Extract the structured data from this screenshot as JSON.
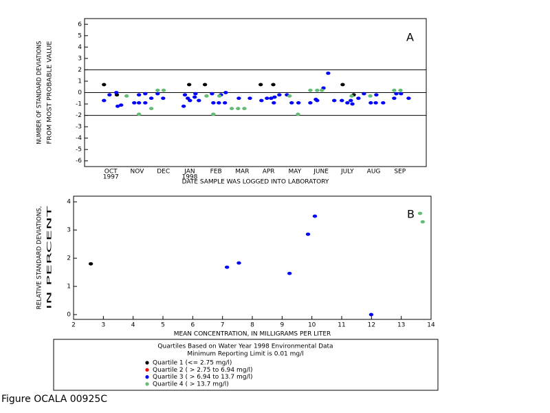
{
  "chart_data": [
    {
      "type": "scatter",
      "annotation": "A",
      "ylabel": [
        "NUMBER OF STANDARD DEVIATIONS",
        "FROM MOST PROBABLE VALUE"
      ],
      "xlabel": "DATE SAMPLE WAS LOGGED INTO LABORATORY",
      "xlim": [
        -0.5,
        12.5
      ],
      "ylim": [
        -6.5,
        6.5
      ],
      "xticks": [
        {
          "value": 0.5,
          "label": "OCT"
        },
        {
          "value": 1.5,
          "label": "NOV"
        },
        {
          "value": 2.5,
          "label": "DEC"
        },
        {
          "value": 3.5,
          "label": "JAN"
        },
        {
          "value": 4.5,
          "label": "FEB"
        },
        {
          "value": 5.5,
          "label": "MAR"
        },
        {
          "value": 6.5,
          "label": "APR"
        },
        {
          "value": 7.5,
          "label": "MAY"
        },
        {
          "value": 8.5,
          "label": "JUNE"
        },
        {
          "value": 9.5,
          "label": "JULY"
        },
        {
          "value": 10.5,
          "label": "AUG"
        },
        {
          "value": 11.5,
          "label": "SEP"
        }
      ],
      "year_labels": [
        {
          "value": 0.5,
          "label": "1997"
        },
        {
          "value": 3.5,
          "label": "1998"
        }
      ],
      "yticks": [
        -6,
        -5,
        -4,
        -3,
        -2,
        -1,
        0,
        1,
        2,
        3,
        4,
        5,
        6
      ],
      "reference_lines": [
        2,
        0,
        -2
      ],
      "series": [
        {
          "name": "Quartile 1 (<= 2.75 mg/l)",
          "color": "#000000",
          "x": [
            0.24,
            0.73,
            3.48,
            4.08,
            6.2,
            6.68,
            9.32,
            9.74
          ],
          "values": [
            0.7,
            -0.2,
            0.7,
            0.7,
            0.7,
            0.7,
            0.7,
            -0.2
          ]
        },
        {
          "name": "Quartile 2 ( > 2.75 to 6.94 mg/l)",
          "color": "#ff0000",
          "x": [],
          "values": []
        },
        {
          "name": "Quartile 3 ( > 6.94 to 13.7 mg/l)",
          "color": "#0000ff",
          "x": [
            0.24,
            0.45,
            0.71,
            0.76,
            0.89,
            1.39,
            1.57,
            1.57,
            1.81,
            1.81,
            2.04,
            2.28,
            2.49,
            3.27,
            3.32,
            3.43,
            3.51,
            3.69,
            3.72,
            3.85,
            4.35,
            4.4,
            4.61,
            4.69,
            4.84,
            4.87,
            5.37,
            5.79,
            6.23,
            6.44,
            6.6,
            6.7,
            6.73,
            6.91,
            7.2,
            7.38,
            7.64,
            8.09,
            8.3,
            8.35,
            8.59,
            8.77,
            9.0,
            9.29,
            9.5,
            9.63,
            9.69,
            9.92,
            10.13,
            10.39,
            10.58,
            10.6,
            10.86,
            11.28,
            11.36,
            11.54,
            11.83
          ],
          "values": [
            -0.7,
            -0.2,
            0,
            -1.2,
            -1.1,
            -0.9,
            -0.9,
            -0.2,
            -0.9,
            -0.1,
            -0.5,
            -0.1,
            -0.5,
            -1.2,
            -0.2,
            -0.5,
            -0.7,
            -0.4,
            -0.1,
            -0.7,
            -0.1,
            -0.9,
            -0.9,
            -0.2,
            -0.9,
            0,
            -0.5,
            -0.5,
            -0.7,
            -0.5,
            -0.5,
            -0.9,
            -0.4,
            -0.2,
            -0.2,
            -0.9,
            -0.9,
            -0.9,
            -0.6,
            -0.7,
            0.4,
            1.7,
            -0.7,
            -0.7,
            -0.9,
            -0.7,
            -1.0,
            -0.5,
            -0.1,
            -0.9,
            -0.9,
            -0.2,
            -0.9,
            -0.5,
            -0.1,
            -0.1,
            -0.5
          ]
        },
        {
          "name": "Quartile 4 ( > 13.7 mg/l)",
          "color": "#66bb77",
          "x": [
            1.1,
            1.57,
            2.04,
            2.28,
            2.51,
            4.14,
            4.4,
            4.63,
            5.1,
            5.34,
            5.58,
            7.3,
            7.62,
            8.09,
            8.35,
            8.53,
            9.66,
            10.37,
            11.28,
            11.52
          ],
          "values": [
            -0.3,
            -1.9,
            -1.4,
            0.2,
            0.2,
            -0.3,
            -1.9,
            -0.3,
            -1.4,
            -1.4,
            -1.4,
            -0.3,
            -1.9,
            0.2,
            0.2,
            0.2,
            -0.3,
            -0.3,
            0.2,
            0.2
          ]
        }
      ]
    },
    {
      "type": "scatter",
      "annotation": "B",
      "ylabel": [
        "RELATIVE STANDARD DEVIATIONS,",
        "IN PERCENT"
      ],
      "xlabel": "MEAN CONCENTRATION, IN MILLIGRAMS PER LITER",
      "xlim": [
        2,
        14
      ],
      "ylim": [
        -0.17,
        4.2
      ],
      "xticks": [
        2,
        3,
        4,
        5,
        6,
        7,
        8,
        9,
        10,
        11,
        12,
        13,
        14
      ],
      "yticks": [
        0,
        1,
        2,
        3,
        4
      ],
      "series": [
        {
          "color": "#000000",
          "x": [
            2.58
          ],
          "values": [
            1.8
          ]
        },
        {
          "color": "#0000ff",
          "x": [
            7.15,
            7.55,
            9.25,
            9.87,
            10.1,
            11.99
          ],
          "values": [
            1.68,
            1.83,
            1.46,
            2.85,
            3.49,
            0.0
          ]
        },
        {
          "color": "#66bb77",
          "x": [
            13.63,
            13.72
          ],
          "values": [
            3.59,
            3.29
          ]
        }
      ]
    }
  ],
  "legend": {
    "title": [
      "Quartiles Based on Water Year 1998 Environmental Data",
      "Minimum Reporting Limit is 0.01 mg/l"
    ]
  },
  "caption": "Figure OCALA 00925C"
}
